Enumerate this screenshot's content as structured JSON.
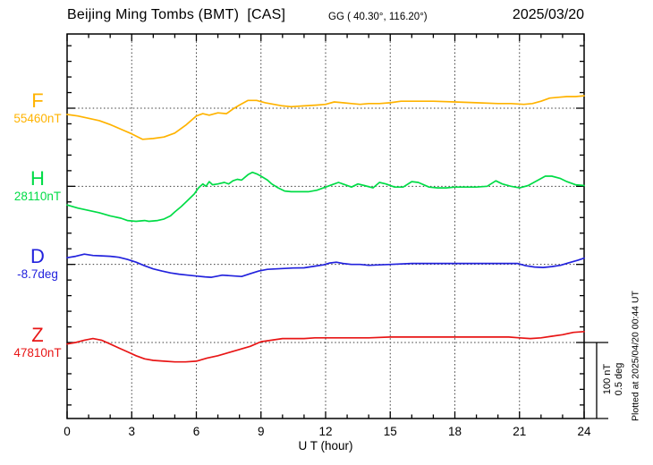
{
  "header": {
    "title": "Beijing Ming Tombs (BMT)  [CAS]",
    "coordinates": "GG ( 40.30°, 116.20°)",
    "date": "2025/03/20"
  },
  "annotations": {
    "scale_nt": "100 nT",
    "scale_deg": "0.5 deg",
    "plotted_at": "Plotted at 2025/04/20 00:44 UT"
  },
  "chart_data": {
    "type": "line",
    "title": "Beijing Ming Tombs (BMT)  [CAS] magnetogram, 2025/03/20",
    "xlabel": "U T (hour)",
    "ylabel": "",
    "x_range": [
      0,
      24
    ],
    "x_major_ticks": [
      0,
      3,
      6,
      9,
      12,
      15,
      18,
      21,
      24
    ],
    "x_minor_step_hours": 1,
    "grid": {
      "vertical_dotted_at_hours": [
        3,
        6,
        9,
        12,
        15,
        18,
        21
      ],
      "horizontal_dotted_at_channel_baselines": true,
      "y_minor_tick_nT": 20
    },
    "scale_bar": {
      "nT": 100,
      "deg": 0.5
    },
    "series": [
      {
        "name": "F",
        "unit": "nT",
        "base": 55460,
        "base_label": "55460nT",
        "color": "#FFB300",
        "points": [
          [
            0,
            55452
          ],
          [
            0.5,
            55450
          ],
          [
            1,
            55447
          ],
          [
            1.5,
            55444
          ],
          [
            2,
            55439
          ],
          [
            2.5,
            55433
          ],
          [
            3,
            55427
          ],
          [
            3.5,
            55420
          ],
          [
            4,
            55421
          ],
          [
            4.5,
            55423
          ],
          [
            5,
            55428
          ],
          [
            5.5,
            55438
          ],
          [
            6,
            55450
          ],
          [
            6.3,
            55453
          ],
          [
            6.6,
            55451
          ],
          [
            7,
            55454
          ],
          [
            7.4,
            55453
          ],
          [
            7.7,
            55459
          ],
          [
            8,
            55464
          ],
          [
            8.4,
            55470
          ],
          [
            8.8,
            55470
          ],
          [
            9.2,
            55467
          ],
          [
            9.6,
            55465
          ],
          [
            10,
            55463
          ],
          [
            10.4,
            55462
          ],
          [
            11,
            55463
          ],
          [
            11.6,
            55464
          ],
          [
            12,
            55465
          ],
          [
            12.4,
            55468
          ],
          [
            12.8,
            55467
          ],
          [
            13.2,
            55466
          ],
          [
            13.6,
            55465
          ],
          [
            14,
            55466
          ],
          [
            14.5,
            55466
          ],
          [
            15,
            55467
          ],
          [
            15.5,
            55469
          ],
          [
            16,
            55469
          ],
          [
            17,
            55469
          ],
          [
            18,
            55468
          ],
          [
            19,
            55467
          ],
          [
            20,
            55466
          ],
          [
            20.6,
            55466
          ],
          [
            21.2,
            55465
          ],
          [
            21.6,
            55466
          ],
          [
            22,
            55469
          ],
          [
            22.4,
            55473
          ],
          [
            22.8,
            55474
          ],
          [
            23.2,
            55475
          ],
          [
            23.6,
            55475
          ],
          [
            24,
            55476
          ]
        ]
      },
      {
        "name": "H",
        "unit": "nT",
        "base": 28110,
        "base_label": "28110nT",
        "color": "#00DC46",
        "points": [
          [
            0,
            28086
          ],
          [
            0.5,
            28082
          ],
          [
            1,
            28079
          ],
          [
            1.5,
            28076
          ],
          [
            2,
            28072
          ],
          [
            2.5,
            28069
          ],
          [
            2.8,
            28066
          ],
          [
            3.2,
            28065
          ],
          [
            3.6,
            28066
          ],
          [
            3.8,
            28065
          ],
          [
            4.2,
            28066
          ],
          [
            4.5,
            28068
          ],
          [
            4.8,
            28072
          ],
          [
            5,
            28077
          ],
          [
            5.3,
            28084
          ],
          [
            5.6,
            28092
          ],
          [
            5.9,
            28100
          ],
          [
            6.1,
            28108
          ],
          [
            6.3,
            28113
          ],
          [
            6.45,
            28110
          ],
          [
            6.6,
            28116
          ],
          [
            6.75,
            28112
          ],
          [
            7,
            28113
          ],
          [
            7.3,
            28115
          ],
          [
            7.5,
            28113
          ],
          [
            7.7,
            28117
          ],
          [
            7.9,
            28119
          ],
          [
            8.1,
            28118
          ],
          [
            8.4,
            28125
          ],
          [
            8.6,
            28128
          ],
          [
            8.8,
            28126
          ],
          [
            9,
            28123
          ],
          [
            9.3,
            28118
          ],
          [
            9.5,
            28113
          ],
          [
            9.8,
            28108
          ],
          [
            10.1,
            28104
          ],
          [
            10.4,
            28103
          ],
          [
            10.8,
            28103
          ],
          [
            11.2,
            28103
          ],
          [
            11.6,
            28105
          ],
          [
            12,
            28109
          ],
          [
            12.3,
            28112
          ],
          [
            12.6,
            28115
          ],
          [
            12.9,
            28112
          ],
          [
            13.2,
            28109
          ],
          [
            13.5,
            28113
          ],
          [
            13.8,
            28111
          ],
          [
            14.2,
            28108
          ],
          [
            14.5,
            28115
          ],
          [
            14.8,
            28113
          ],
          [
            15.2,
            28109
          ],
          [
            15.6,
            28109
          ],
          [
            16,
            28116
          ],
          [
            16.3,
            28115
          ],
          [
            16.8,
            28109
          ],
          [
            17.2,
            28108
          ],
          [
            17.6,
            28108
          ],
          [
            18,
            28109
          ],
          [
            18.5,
            28109
          ],
          [
            19,
            28109
          ],
          [
            19.5,
            28110
          ],
          [
            19.9,
            28117
          ],
          [
            20.2,
            28113
          ],
          [
            20.6,
            28110
          ],
          [
            21,
            28108
          ],
          [
            21.4,
            28111
          ],
          [
            21.8,
            28117
          ],
          [
            22.2,
            28123
          ],
          [
            22.5,
            28123
          ],
          [
            22.9,
            28120
          ],
          [
            23.2,
            28116
          ],
          [
            23.6,
            28112
          ],
          [
            24,
            28111
          ]
        ]
      },
      {
        "name": "D",
        "unit": "deg",
        "base": -8.7,
        "base_label": "-8.7deg",
        "color": "#2222DD",
        "points": [
          [
            0,
            -8.657
          ],
          [
            0.4,
            -8.648
          ],
          [
            0.8,
            -8.634
          ],
          [
            1.2,
            -8.643
          ],
          [
            1.6,
            -8.645
          ],
          [
            2,
            -8.648
          ],
          [
            2.4,
            -8.654
          ],
          [
            2.8,
            -8.668
          ],
          [
            3.2,
            -8.686
          ],
          [
            3.6,
            -8.709
          ],
          [
            4,
            -8.729
          ],
          [
            4.4,
            -8.743
          ],
          [
            4.8,
            -8.755
          ],
          [
            5.2,
            -8.763
          ],
          [
            5.6,
            -8.769
          ],
          [
            6,
            -8.775
          ],
          [
            6.4,
            -8.78
          ],
          [
            6.7,
            -8.783
          ],
          [
            7,
            -8.775
          ],
          [
            7.2,
            -8.769
          ],
          [
            7.5,
            -8.772
          ],
          [
            7.8,
            -8.775
          ],
          [
            8.1,
            -8.778
          ],
          [
            8.5,
            -8.76
          ],
          [
            8.9,
            -8.743
          ],
          [
            9.3,
            -8.732
          ],
          [
            9.7,
            -8.729
          ],
          [
            10.1,
            -8.726
          ],
          [
            10.5,
            -8.723
          ],
          [
            11,
            -8.722
          ],
          [
            11.5,
            -8.711
          ],
          [
            11.9,
            -8.703
          ],
          [
            12.2,
            -8.691
          ],
          [
            12.5,
            -8.686
          ],
          [
            12.8,
            -8.694
          ],
          [
            13.2,
            -8.7
          ],
          [
            13.6,
            -8.7
          ],
          [
            14,
            -8.706
          ],
          [
            14.5,
            -8.703
          ],
          [
            15,
            -8.7
          ],
          [
            16,
            -8.694
          ],
          [
            17,
            -8.694
          ],
          [
            18,
            -8.694
          ],
          [
            19,
            -8.694
          ],
          [
            20,
            -8.694
          ],
          [
            20.9,
            -8.694
          ],
          [
            21.3,
            -8.709
          ],
          [
            21.7,
            -8.717
          ],
          [
            22.1,
            -8.72
          ],
          [
            22.5,
            -8.714
          ],
          [
            22.9,
            -8.706
          ],
          [
            23.3,
            -8.689
          ],
          [
            23.7,
            -8.674
          ],
          [
            24,
            -8.66
          ]
        ]
      },
      {
        "name": "Z",
        "unit": "nT",
        "base": 47810,
        "base_label": "47810nT",
        "color": "#E81515",
        "points": [
          [
            0,
            47808
          ],
          [
            0.4,
            47810
          ],
          [
            0.8,
            47813
          ],
          [
            1.2,
            47815
          ],
          [
            1.6,
            47813
          ],
          [
            2,
            47808
          ],
          [
            2.4,
            47803
          ],
          [
            2.8,
            47798
          ],
          [
            3.2,
            47793
          ],
          [
            3.6,
            47789
          ],
          [
            4,
            47787
          ],
          [
            4.5,
            47786
          ],
          [
            5,
            47785
          ],
          [
            5.5,
            47785
          ],
          [
            6,
            47786
          ],
          [
            6.5,
            47790
          ],
          [
            7,
            47793
          ],
          [
            7.5,
            47797
          ],
          [
            8,
            47801
          ],
          [
            8.5,
            47805
          ],
          [
            9,
            47811
          ],
          [
            9.5,
            47813
          ],
          [
            10,
            47815
          ],
          [
            10.5,
            47815
          ],
          [
            11,
            47815
          ],
          [
            11.5,
            47816
          ],
          [
            12,
            47816
          ],
          [
            13,
            47816
          ],
          [
            14,
            47816
          ],
          [
            15,
            47817
          ],
          [
            16,
            47817
          ],
          [
            17,
            47817
          ],
          [
            18,
            47817
          ],
          [
            19,
            47817
          ],
          [
            20,
            47817
          ],
          [
            20.5,
            47817
          ],
          [
            21,
            47816
          ],
          [
            21.5,
            47815
          ],
          [
            22,
            47816
          ],
          [
            22.5,
            47818
          ],
          [
            23,
            47820
          ],
          [
            23.5,
            47823
          ],
          [
            24,
            47824
          ]
        ]
      }
    ]
  }
}
